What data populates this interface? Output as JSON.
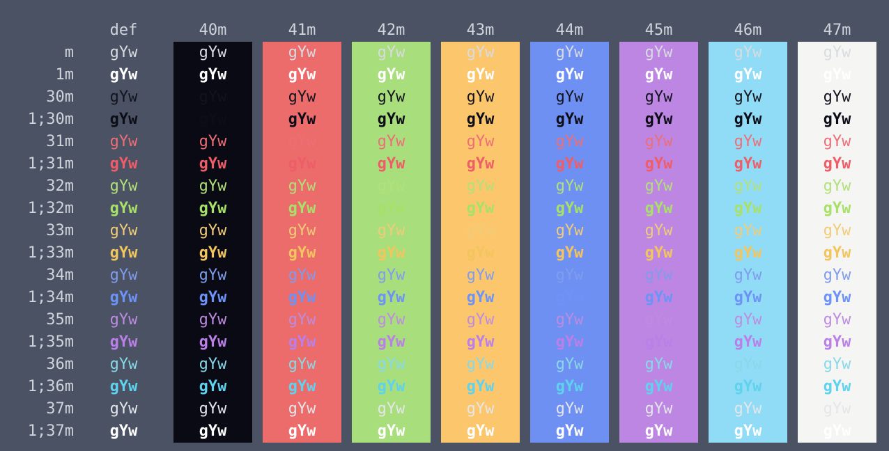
{
  "terminal": {
    "bg": "#4a5264",
    "label_fg": "#cfd4db"
  },
  "cell_text": "gYw",
  "columns": [
    {
      "label": "def",
      "bg": null
    },
    {
      "label": "40m",
      "bg": "#0a0a15"
    },
    {
      "label": "41m",
      "bg": "#ec6b6b"
    },
    {
      "label": "42m",
      "bg": "#a8de7c"
    },
    {
      "label": "43m",
      "bg": "#fcc66c"
    },
    {
      "label": "44m",
      "bg": "#6f90f3"
    },
    {
      "label": "45m",
      "bg": "#bd86e3"
    },
    {
      "label": "46m",
      "bg": "#90dcf6"
    },
    {
      "label": "47m",
      "bg": "#f5f5f4"
    }
  ],
  "rows": [
    {
      "label": "m",
      "fg": "#d8dbe0",
      "bold": false
    },
    {
      "label": "1m",
      "fg": "#ffffff",
      "bold": true
    },
    {
      "label": "30m",
      "fg": "#12131d",
      "bold": false
    },
    {
      "label": "1;30m",
      "fg": "#0c0d17",
      "bold": true
    },
    {
      "label": "31m",
      "fg": "#ed6e76",
      "bold": false
    },
    {
      "label": "1;31m",
      "fg": "#ee5d68",
      "bold": true
    },
    {
      "label": "32m",
      "fg": "#b2e07a",
      "bold": false
    },
    {
      "label": "1;32m",
      "fg": "#a8e06a",
      "bold": true
    },
    {
      "label": "33m",
      "fg": "#f0cc78",
      "bold": false
    },
    {
      "label": "1;33m",
      "fg": "#f2c55e",
      "bold": true
    },
    {
      "label": "34m",
      "fg": "#7f9ced",
      "bold": false
    },
    {
      "label": "1;34m",
      "fg": "#6d93f7",
      "bold": true
    },
    {
      "label": "35m",
      "fg": "#bd8ce0",
      "bold": false
    },
    {
      "label": "1;35m",
      "fg": "#bb7fe8",
      "bold": true
    },
    {
      "label": "36m",
      "fg": "#88d9e8",
      "bold": false
    },
    {
      "label": "1;36m",
      "fg": "#5fd2ee",
      "bold": true
    },
    {
      "label": "37m",
      "fg": "#e4e6ea",
      "bold": false
    },
    {
      "label": "1;37m",
      "fg": "#ffffff",
      "bold": true
    }
  ]
}
